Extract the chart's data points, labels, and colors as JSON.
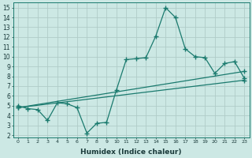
{
  "xlabel": "Humidex (Indice chaleur)",
  "xlim": [
    -0.5,
    23.5
  ],
  "ylim": [
    1.8,
    15.5
  ],
  "yticks": [
    2,
    3,
    4,
    5,
    6,
    7,
    8,
    9,
    10,
    11,
    12,
    13,
    14,
    15
  ],
  "xticks": [
    0,
    1,
    2,
    3,
    4,
    5,
    6,
    7,
    8,
    9,
    10,
    11,
    12,
    13,
    14,
    15,
    16,
    17,
    18,
    19,
    20,
    21,
    22,
    23
  ],
  "bg_color": "#cce8e4",
  "line_color": "#1a7a6e",
  "grid_color": "#b0ccc8",
  "line1_x": [
    0,
    1,
    2,
    3,
    4,
    5,
    6,
    7,
    8,
    9,
    10,
    11,
    12,
    13,
    14,
    15,
    16,
    17,
    18,
    19,
    20,
    21,
    22,
    23
  ],
  "line1_y": [
    5.0,
    4.7,
    4.6,
    3.5,
    5.3,
    5.2,
    4.8,
    2.2,
    3.2,
    3.3,
    6.6,
    9.7,
    9.8,
    9.9,
    12.1,
    15.0,
    14.0,
    10.8,
    10.0,
    9.9,
    8.3,
    9.3,
    9.5,
    7.8
  ],
  "line2_x": [
    0,
    23
  ],
  "line2_y": [
    4.8,
    8.5
  ],
  "line3_x": [
    0,
    23
  ],
  "line3_y": [
    4.8,
    7.6
  ]
}
